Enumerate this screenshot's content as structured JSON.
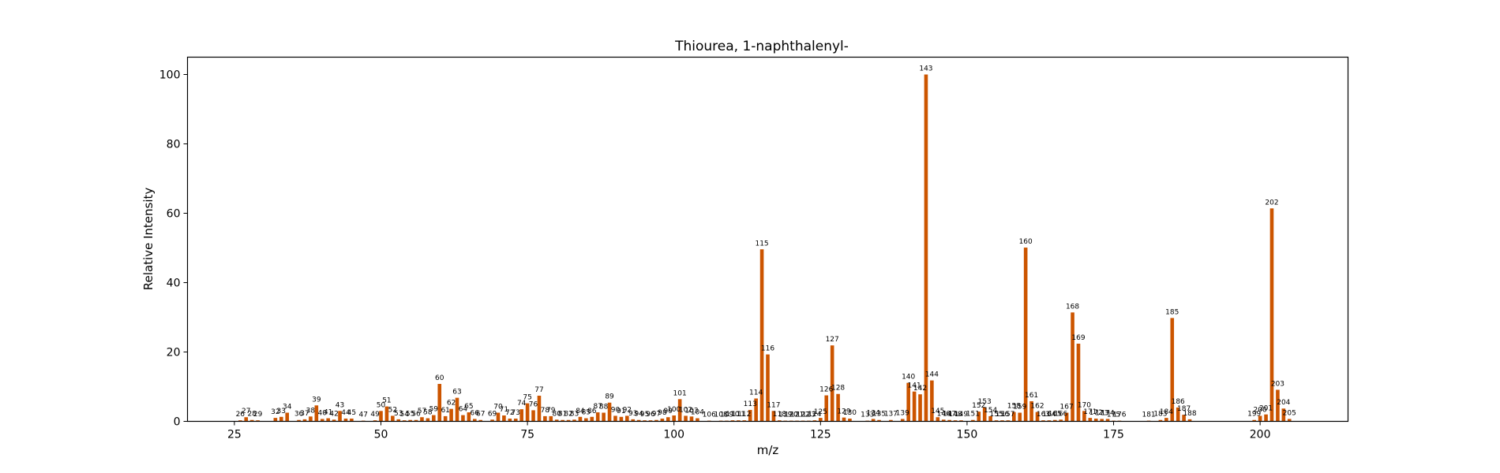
{
  "chart_data": {
    "type": "bar",
    "title": "Thiourea, 1-naphthalenyl-",
    "xlabel": "m/z",
    "ylabel": "Relative Intensity",
    "xlim": [
      17,
      215
    ],
    "ylim": [
      0,
      105
    ],
    "xticks": [
      25,
      50,
      75,
      100,
      125,
      150,
      175,
      200
    ],
    "yticks": [
      0,
      20,
      40,
      60,
      80,
      100
    ],
    "grid": false,
    "bar_color": "#cc5500",
    "x": [
      26,
      27,
      28,
      29,
      32,
      33,
      34,
      36,
      37,
      38,
      39,
      40,
      41,
      42,
      43,
      44,
      45,
      47,
      49,
      50,
      51,
      52,
      53,
      54,
      55,
      56,
      57,
      58,
      59,
      60,
      61,
      62,
      63,
      64,
      65,
      66,
      67,
      69,
      70,
      71,
      72,
      73,
      74,
      75,
      76,
      77,
      78,
      79,
      80,
      81,
      82,
      83,
      84,
      85,
      86,
      87,
      88,
      89,
      90,
      91,
      92,
      93,
      94,
      95,
      96,
      97,
      98,
      99,
      100,
      101,
      102,
      103,
      104,
      106,
      108,
      109,
      110,
      111,
      112,
      113,
      114,
      115,
      116,
      117,
      118,
      119,
      120,
      121,
      122,
      123,
      124,
      125,
      126,
      127,
      128,
      129,
      130,
      133,
      134,
      135,
      137,
      139,
      140,
      141,
      142,
      143,
      144,
      145,
      146,
      147,
      148,
      149,
      151,
      152,
      153,
      154,
      155,
      156,
      157,
      158,
      159,
      160,
      161,
      162,
      163,
      164,
      165,
      166,
      167,
      168,
      169,
      170,
      171,
      172,
      173,
      174,
      175,
      176,
      181,
      183,
      184,
      185,
      186,
      187,
      188,
      199,
      200,
      201,
      202,
      203,
      204,
      205
    ],
    "values": [
      0.3,
      1.2,
      0.4,
      0.3,
      1.0,
      1.3,
      2.5,
      0.4,
      0.6,
      1.4,
      4.6,
      0.7,
      0.9,
      0.5,
      3.0,
      0.8,
      0.8,
      0.2,
      0.3,
      3.0,
      4.3,
      1.6,
      0.6,
      0.3,
      0.4,
      0.4,
      1.2,
      0.9,
      1.8,
      10.8,
      1.5,
      3.6,
      6.8,
      1.8,
      2.6,
      0.7,
      0.4,
      0.5,
      2.5,
      1.7,
      0.8,
      0.8,
      3.5,
      5.2,
      3.2,
      7.4,
      1.5,
      1.5,
      0.5,
      0.4,
      0.4,
      0.5,
      1.3,
      0.9,
      1.3,
      2.6,
      2.5,
      5.4,
      1.6,
      1.3,
      1.6,
      0.6,
      0.4,
      0.3,
      0.3,
      0.4,
      0.8,
      1.2,
      1.7,
      6.4,
      1.6,
      1.4,
      0.9,
      0.2,
      0.2,
      0.2,
      0.3,
      0.3,
      0.3,
      3.3,
      6.6,
      49.6,
      19.3,
      3.0,
      0.3,
      0.2,
      0.2,
      0.2,
      0.2,
      0.2,
      0.3,
      1.0,
      7.5,
      21.9,
      7.9,
      1.1,
      0.8,
      0.2,
      0.7,
      0.4,
      0.4,
      0.7,
      11.1,
      8.6,
      7.8,
      100.0,
      11.8,
      1.2,
      0.5,
      0.4,
      0.3,
      0.3,
      0.4,
      2.8,
      4.0,
      1.5,
      0.3,
      0.3,
      0.3,
      2.7,
      2.5,
      50.1,
      5.8,
      2.7,
      0.3,
      0.3,
      0.4,
      0.5,
      2.5,
      31.4,
      22.4,
      3.0,
      1.0,
      0.8,
      0.7,
      0.7,
      0.2,
      0.2,
      0.2,
      0.4,
      1.0,
      29.8,
      4.0,
      1.9,
      0.6,
      0.4,
      1.6,
      2.0,
      61.4,
      9.1,
      3.7,
      0.7
    ]
  }
}
